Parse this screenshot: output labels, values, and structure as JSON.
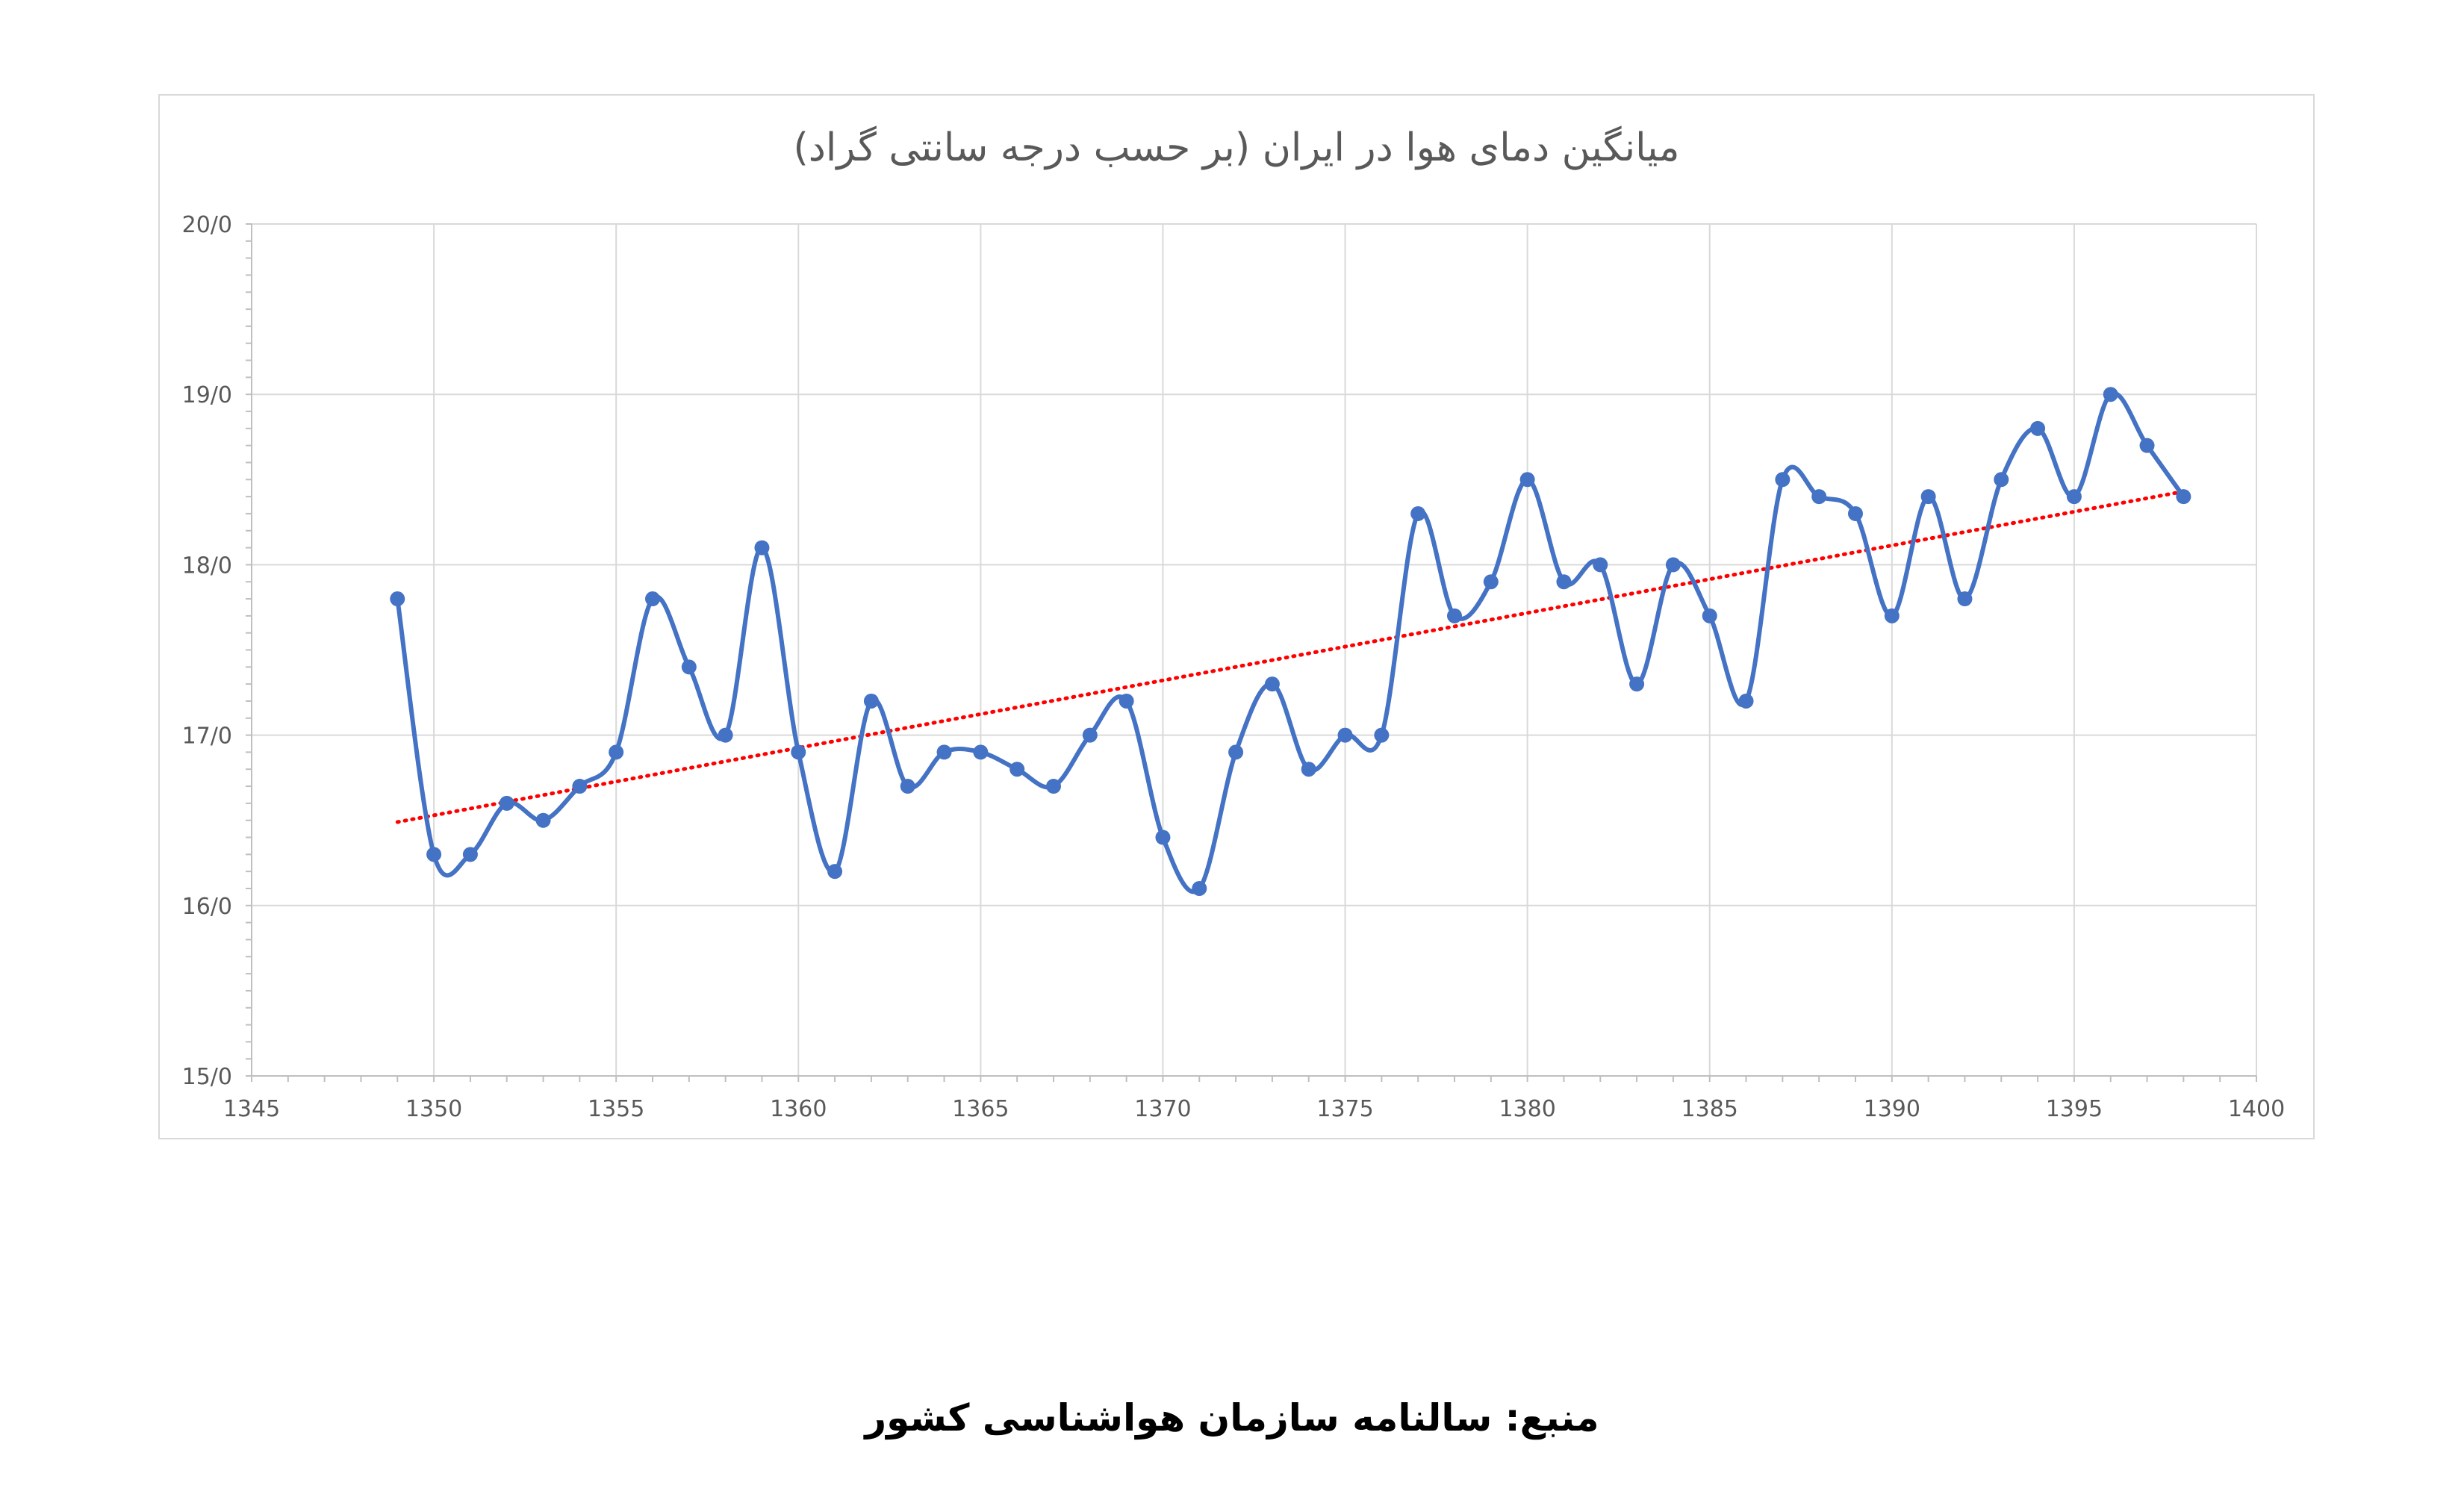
{
  "chart_data": {
    "type": "line",
    "title": "میانگین دمای هوا در ایران (بر حسب درجه سانتی گراد)",
    "x": [
      1349,
      1350,
      1351,
      1352,
      1353,
      1354,
      1355,
      1356,
      1357,
      1358,
      1359,
      1360,
      1361,
      1362,
      1363,
      1364,
      1365,
      1366,
      1367,
      1368,
      1369,
      1370,
      1371,
      1372,
      1373,
      1374,
      1375,
      1376,
      1377,
      1378,
      1379,
      1380,
      1381,
      1382,
      1383,
      1384,
      1385,
      1386,
      1387,
      1388,
      1389,
      1390,
      1391,
      1392,
      1393,
      1394,
      1395,
      1396,
      1397,
      1398
    ],
    "series": [
      {
        "values": [
          17.8,
          16.3,
          16.3,
          16.6,
          16.5,
          16.7,
          16.9,
          17.8,
          17.4,
          17.0,
          18.1,
          16.9,
          16.2,
          17.2,
          16.7,
          16.9,
          16.9,
          16.8,
          16.7,
          17.0,
          17.2,
          16.4,
          16.1,
          16.9,
          17.3,
          16.8,
          17.0,
          17.0,
          18.3,
          17.7,
          17.9,
          18.5,
          17.9,
          18.0,
          17.3,
          18.0,
          17.7,
          17.2,
          18.5,
          18.4,
          18.3,
          17.7,
          18.4,
          17.8,
          18.5,
          18.8,
          18.4,
          19.0,
          18.7,
          18.4
        ],
        "color": "#4472c4",
        "smooth": true,
        "markers": true
      }
    ],
    "trendline": {
      "type": "linear",
      "color": "#ff0000",
      "style": "dotted",
      "start": [
        1349,
        16.49
      ],
      "end": [
        1398,
        18.43
      ]
    },
    "xlim": [
      1345,
      1400
    ],
    "ylim": [
      15.0,
      20.0
    ],
    "xticks": [
      1345,
      1350,
      1355,
      1360,
      1365,
      1370,
      1375,
      1380,
      1385,
      1390,
      1395,
      1400
    ],
    "xtick_labels": [
      "1345",
      "1350",
      "1355",
      "1360",
      "1365",
      "1370",
      "1375",
      "1380",
      "1385",
      "1390",
      "1395",
      "1400"
    ],
    "yticks": [
      15,
      16,
      17,
      18,
      19,
      20
    ],
    "ytick_labels": [
      "15/0",
      "16/0",
      "17/0",
      "18/0",
      "19/0",
      "20/0"
    ],
    "grid": true,
    "legend": "none",
    "colors": {
      "grid": "#d9d9d9",
      "axis": "#bfbfbf",
      "tick_text": "#595959"
    }
  },
  "source_note": "منبع: سالنامه سازمان هواشناسی کشور"
}
